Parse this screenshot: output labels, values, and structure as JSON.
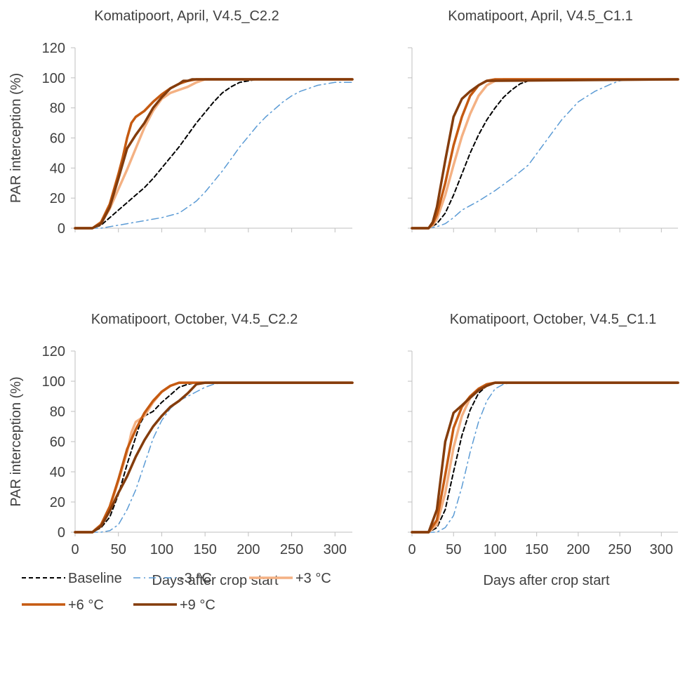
{
  "chart_data": [
    {
      "type": "line",
      "title": "Komatipoort, April, V4.5_C2.2",
      "ylabel": "PAR interception (%)",
      "xlabel": "",
      "xlim": [
        0,
        320
      ],
      "ylim": [
        0,
        120
      ],
      "yticks": [
        "0",
        "20",
        "40",
        "60",
        "80",
        "100",
        "120"
      ],
      "xticks": [],
      "series": [
        {
          "name": "Baseline",
          "x": [
            0,
            20,
            30,
            40,
            50,
            60,
            70,
            80,
            90,
            100,
            110,
            120,
            130,
            140,
            150,
            160,
            170,
            180,
            190,
            200,
            210,
            320
          ],
          "y": [
            0,
            0,
            2,
            7,
            12,
            17,
            22,
            27,
            33,
            40,
            47,
            54,
            62,
            70,
            77,
            84,
            90,
            94,
            97,
            98,
            99,
            99
          ]
        },
        {
          "name": "-3 °C",
          "x": [
            0,
            20,
            30,
            40,
            60,
            80,
            100,
            120,
            130,
            140,
            150,
            160,
            170,
            180,
            190,
            200,
            210,
            220,
            230,
            240,
            250,
            260,
            270,
            280,
            290,
            300,
            310,
            320
          ],
          "y": [
            0,
            0,
            0,
            1,
            3,
            5,
            7,
            10,
            14,
            18,
            24,
            31,
            38,
            46,
            54,
            61,
            68,
            74,
            79,
            84,
            88,
            91,
            93,
            95,
            96,
            97,
            97,
            97
          ]
        },
        {
          "name": "+3 °C",
          "x": [
            0,
            20,
            30,
            40,
            50,
            60,
            70,
            80,
            90,
            100,
            110,
            120,
            130,
            140,
            150,
            160,
            320
          ],
          "y": [
            0,
            0,
            3,
            13,
            26,
            39,
            53,
            67,
            78,
            86,
            90,
            92,
            94,
            97,
            99,
            99,
            99
          ]
        },
        {
          "name": "+6 °C",
          "x": [
            0,
            20,
            30,
            40,
            50,
            55,
            60,
            65,
            70,
            80,
            90,
            100,
            110,
            120,
            130,
            140,
            320
          ],
          "y": [
            0,
            0,
            4,
            16,
            36,
            47,
            60,
            70,
            74,
            78,
            84,
            89,
            93,
            96,
            98,
            99,
            99
          ]
        },
        {
          "name": "+9 °C",
          "x": [
            0,
            20,
            30,
            40,
            50,
            60,
            70,
            80,
            90,
            100,
            110,
            120,
            125,
            130,
            135,
            320
          ],
          "y": [
            0,
            0,
            3,
            14,
            33,
            53,
            62,
            70,
            80,
            87,
            93,
            96,
            98,
            98,
            99,
            99
          ]
        }
      ]
    },
    {
      "type": "line",
      "title": "Komatipoort, April, V4.5_C1.1",
      "ylabel": "",
      "xlabel": "",
      "xlim": [
        0,
        320
      ],
      "ylim": [
        0,
        120
      ],
      "yticks": [],
      "xticks": [],
      "series": [
        {
          "name": "Baseline",
          "x": [
            0,
            20,
            30,
            40,
            50,
            60,
            70,
            80,
            90,
            100,
            110,
            120,
            130,
            140,
            150,
            160,
            320
          ],
          "y": [
            0,
            0,
            3,
            10,
            22,
            36,
            50,
            62,
            72,
            80,
            87,
            92,
            96,
            98,
            99,
            99,
            99
          ]
        },
        {
          "name": "-3 °C",
          "x": [
            0,
            20,
            30,
            40,
            50,
            60,
            80,
            100,
            120,
            140,
            160,
            180,
            200,
            220,
            240,
            250,
            260,
            320
          ],
          "y": [
            0,
            0,
            1,
            3,
            7,
            12,
            18,
            25,
            33,
            42,
            57,
            72,
            84,
            91,
            96,
            98,
            99,
            99
          ]
        },
        {
          "name": "+3 °C",
          "x": [
            0,
            20,
            25,
            30,
            40,
            50,
            60,
            70,
            80,
            90,
            100,
            110,
            320
          ],
          "y": [
            0,
            0,
            2,
            6,
            22,
            42,
            61,
            76,
            88,
            95,
            98,
            99,
            99
          ]
        },
        {
          "name": "+6 °C",
          "x": [
            0,
            20,
            25,
            30,
            40,
            50,
            60,
            70,
            80,
            90,
            100,
            320
          ],
          "y": [
            0,
            0,
            3,
            9,
            30,
            55,
            74,
            88,
            95,
            98,
            99,
            99
          ]
        },
        {
          "name": "+9 °C",
          "x": [
            0,
            20,
            25,
            30,
            40,
            50,
            60,
            70,
            80,
            90,
            320
          ],
          "y": [
            0,
            0,
            4,
            14,
            45,
            74,
            86,
            91,
            95,
            98,
            99
          ]
        }
      ]
    },
    {
      "type": "line",
      "title": "Komatipoort, October, V4.5_C2.2",
      "ylabel": "PAR interception (%)",
      "xlabel": "Days after crop start",
      "xlim": [
        0,
        320
      ],
      "ylim": [
        0,
        120
      ],
      "yticks": [
        "0",
        "20",
        "40",
        "60",
        "80",
        "100",
        "120"
      ],
      "xticks": [
        "0",
        "50",
        "100",
        "150",
        "200",
        "250",
        "300"
      ],
      "series": [
        {
          "name": "Baseline",
          "x": [
            0,
            20,
            30,
            40,
            50,
            60,
            70,
            75,
            80,
            90,
            100,
            110,
            120,
            130,
            140,
            150,
            320
          ],
          "y": [
            0,
            0,
            3,
            10,
            25,
            45,
            63,
            72,
            77,
            80,
            86,
            91,
            96,
            98,
            99,
            99,
            99
          ]
        },
        {
          "name": "-3 °C",
          "x": [
            0,
            30,
            40,
            50,
            60,
            70,
            80,
            90,
            100,
            110,
            120,
            130,
            140,
            150,
            160,
            170,
            320
          ],
          "y": [
            0,
            0,
            1,
            5,
            15,
            28,
            45,
            62,
            74,
            82,
            87,
            90,
            93,
            96,
            98,
            99,
            99
          ]
        },
        {
          "name": "+3 °C",
          "x": [
            0,
            20,
            30,
            40,
            50,
            60,
            65,
            70,
            75,
            80,
            90,
            100,
            110,
            120,
            130,
            320
          ],
          "y": [
            0,
            0,
            5,
            16,
            34,
            53,
            66,
            73,
            75,
            77,
            86,
            93,
            97,
            99,
            99,
            99
          ]
        },
        {
          "name": "+6 °C",
          "x": [
            0,
            20,
            30,
            40,
            50,
            60,
            70,
            80,
            90,
            100,
            110,
            120,
            130,
            320
          ],
          "y": [
            0,
            0,
            5,
            17,
            35,
            55,
            68,
            79,
            87,
            93,
            97,
            99,
            99,
            99
          ]
        },
        {
          "name": "+9 °C",
          "x": [
            0,
            20,
            30,
            40,
            50,
            60,
            70,
            80,
            90,
            100,
            110,
            120,
            130,
            140,
            150,
            320
          ],
          "y": [
            0,
            0,
            4,
            14,
            26,
            37,
            50,
            61,
            70,
            77,
            83,
            87,
            92,
            98,
            99,
            99
          ]
        }
      ]
    },
    {
      "type": "line",
      "title": "Komatipoort, October, V4.5_C1.1",
      "ylabel": "",
      "xlabel": "Days after crop start",
      "xlim": [
        0,
        320
      ],
      "ylim": [
        0,
        120
      ],
      "yticks": [],
      "xticks": [
        "0",
        "50",
        "100",
        "150",
        "200",
        "250",
        "300"
      ],
      "series": [
        {
          "name": "Baseline",
          "x": [
            0,
            20,
            30,
            40,
            50,
            60,
            70,
            80,
            90,
            100,
            320
          ],
          "y": [
            0,
            0,
            3,
            15,
            40,
            64,
            81,
            92,
            97,
            99,
            99
          ]
        },
        {
          "name": "-3 °C",
          "x": [
            0,
            30,
            40,
            50,
            60,
            70,
            80,
            90,
            100,
            110,
            120,
            320
          ],
          "y": [
            0,
            0,
            3,
            11,
            30,
            53,
            73,
            87,
            95,
            98,
            99,
            99
          ]
        },
        {
          "name": "+3 °C",
          "x": [
            0,
            20,
            30,
            40,
            50,
            60,
            70,
            80,
            90,
            100,
            320
          ],
          "y": [
            0,
            0,
            5,
            26,
            56,
            77,
            89,
            95,
            98,
            99,
            99
          ]
        },
        {
          "name": "+6 °C",
          "x": [
            0,
            20,
            30,
            40,
            50,
            60,
            70,
            80,
            90,
            100,
            320
          ],
          "y": [
            0,
            0,
            8,
            38,
            69,
            83,
            90,
            95,
            98,
            99,
            99
          ]
        },
        {
          "name": "+9 °C",
          "x": [
            0,
            20,
            30,
            40,
            50,
            60,
            70,
            80,
            90,
            100,
            320
          ],
          "y": [
            0,
            0,
            15,
            60,
            79,
            84,
            89,
            94,
            97,
            99,
            99
          ]
        }
      ]
    }
  ],
  "legend": {
    "entries": [
      {
        "label": "Baseline",
        "color": "#000000",
        "dash": "dashed"
      },
      {
        "label": "-3 °C",
        "color": "#5b9bd5",
        "dash": "dash-dot"
      },
      {
        "label": "+3 °C",
        "color": "#f4b183",
        "dash": "solid"
      },
      {
        "label": "+6 °C",
        "color": "#c55a11",
        "dash": "solid"
      },
      {
        "label": "+9 °C",
        "color": "#843c0c",
        "dash": "solid"
      }
    ]
  }
}
